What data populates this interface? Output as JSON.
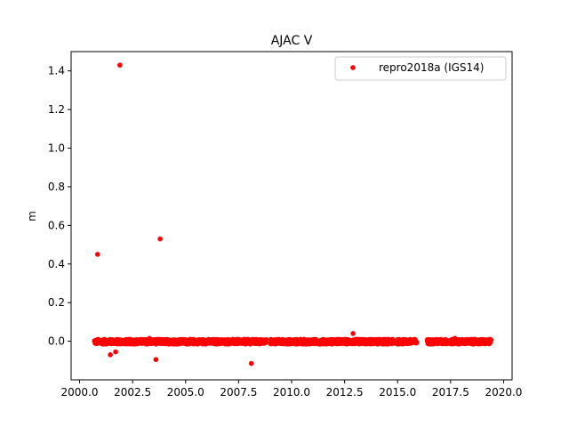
{
  "chart_data": {
    "type": "scatter",
    "title": "AJAC V",
    "xlabel": "",
    "ylabel": "m",
    "xlim": [
      1999.6,
      2020.4
    ],
    "ylim": [
      -0.2,
      1.5
    ],
    "xticks": [
      2000.0,
      2002.5,
      2005.0,
      2007.5,
      2010.0,
      2012.5,
      2015.0,
      2017.5,
      2020.0
    ],
    "xtick_labels": [
      "2000.0",
      "2002.5",
      "2005.0",
      "2007.5",
      "2010.0",
      "2012.5",
      "2015.0",
      "2017.5",
      "2020.0"
    ],
    "yticks": [
      0.0,
      0.2,
      0.4,
      0.6,
      0.8,
      1.0,
      1.2,
      1.4
    ],
    "ytick_labels": [
      "0.0",
      "0.2",
      "0.4",
      "0.6",
      "0.8",
      "1.0",
      "1.2",
      "1.4"
    ],
    "legend_position": "top-right",
    "grid": false,
    "series": [
      {
        "name": "repro2018a (IGS14)",
        "color": "#ff0000",
        "marker": "circle",
        "segments": [
          {
            "start": 2000.7,
            "end": 2008.8
          },
          {
            "start": 2009.0,
            "end": 2015.9
          },
          {
            "start": 2016.4,
            "end": 2019.4
          }
        ],
        "cluster_range": [
          -0.015,
          0.01
        ],
        "outliers": [
          {
            "x": 2001.9,
            "y": 1.43
          },
          {
            "x": 2000.85,
            "y": 0.45
          },
          {
            "x": 2003.8,
            "y": 0.53
          },
          {
            "x": 2001.45,
            "y": -0.07
          },
          {
            "x": 2001.7,
            "y": -0.055
          },
          {
            "x": 2003.6,
            "y": -0.095
          },
          {
            "x": 2008.1,
            "y": -0.115
          },
          {
            "x": 2012.9,
            "y": 0.04
          },
          {
            "x": 2003.3,
            "y": 0.015
          },
          {
            "x": 2017.7,
            "y": 0.015
          }
        ]
      }
    ]
  }
}
